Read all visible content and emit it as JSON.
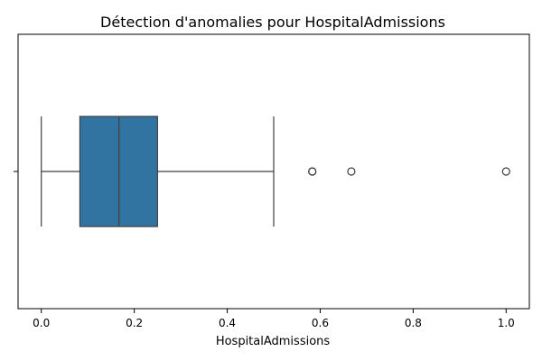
{
  "chart_data": {
    "type": "boxplot",
    "orientation": "horizontal",
    "title": "Détection d'anomalies pour HospitalAdmissions",
    "xlabel": "HospitalAdmissions",
    "ylabel": "",
    "xlim": [
      -0.05,
      1.05
    ],
    "xticks": [
      0.0,
      0.2,
      0.4,
      0.6,
      0.8,
      1.0
    ],
    "xtick_labels": [
      "0.0",
      "0.2",
      "0.4",
      "0.6",
      "0.8",
      "1.0"
    ],
    "grid": false,
    "box": {
      "whisker_low": 0.0,
      "q1": 0.083,
      "median": 0.167,
      "q3": 0.25,
      "whisker_high": 0.5,
      "color": "#3274a1"
    },
    "outliers": [
      0.583,
      0.583,
      0.667,
      1.0
    ]
  }
}
